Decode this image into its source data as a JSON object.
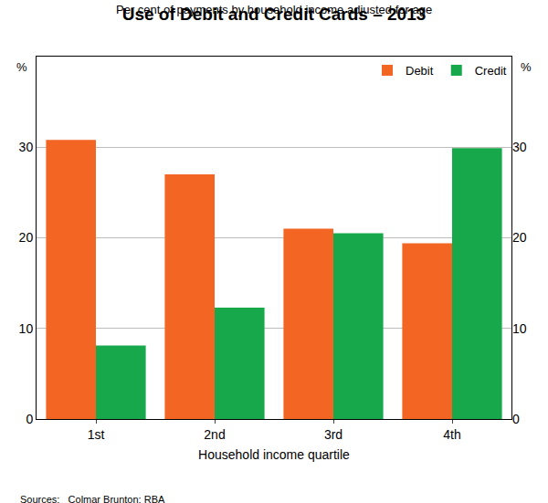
{
  "chart_data": {
    "type": "bar",
    "title": "Use of Debit and Credit Cards – 2013",
    "subtitle": "Per cent of payments by household income adjusted for age",
    "xlabel": "Household income quartile",
    "ylabel": "%",
    "y2label": "%",
    "source": "Sources:   Colmar Brunton; RBA",
    "categories": [
      "1st",
      "2nd",
      "3rd",
      "4th"
    ],
    "series": [
      {
        "name": "Debit",
        "color": "#f26522",
        "values": [
          30.8,
          27.0,
          21.0,
          19.4
        ]
      },
      {
        "name": "Credit",
        "color": "#17a84b",
        "values": [
          8.1,
          12.3,
          20.5,
          29.9
        ]
      }
    ],
    "ylim": [
      0,
      40
    ],
    "yticks": [
      0,
      10,
      20,
      30
    ],
    "y2lim": [
      0,
      40
    ],
    "y2ticks": [
      0,
      10,
      20,
      30
    ],
    "grid": true,
    "legend": "top right"
  }
}
